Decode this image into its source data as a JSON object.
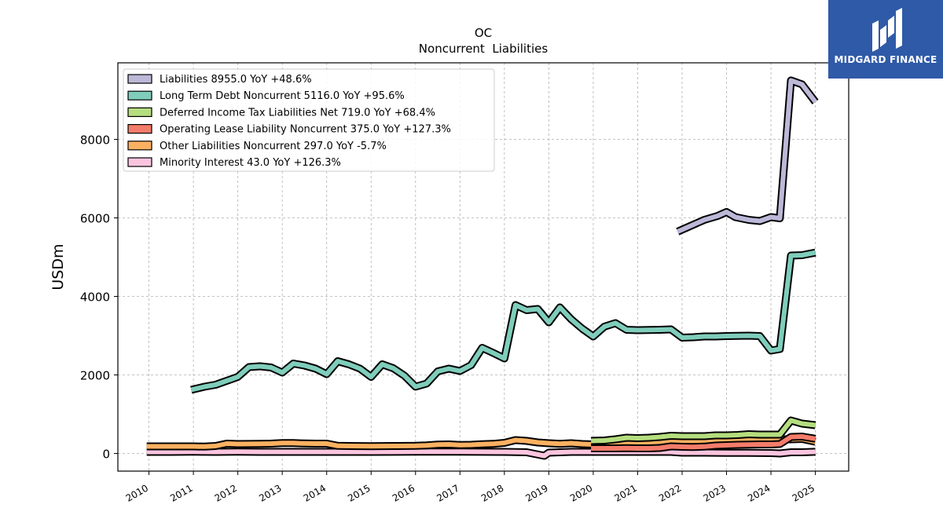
{
  "brand": {
    "name": "MIDGARD FINANCE",
    "bg": "#2f5aa8",
    "icon": "midgard-logo-icon"
  },
  "chart_data": {
    "type": "line",
    "title": "OC",
    "subtitle": "Noncurrent  Liabilities",
    "ylabel": "USDm",
    "xlabel": "",
    "ylim": [
      -450,
      9950
    ],
    "xlim": [
      2009.3,
      2025.75
    ],
    "yticks": [
      0,
      2000,
      4000,
      6000,
      8000
    ],
    "xticks": [
      "2010",
      "2011",
      "2012",
      "2013",
      "2014",
      "2015",
      "2016",
      "2017",
      "2018",
      "2019",
      "2020",
      "2021",
      "2022",
      "2023",
      "2024",
      "2025"
    ],
    "grid": true,
    "legend_position": "top-left",
    "series": [
      {
        "name": "Liabilities",
        "legend": "Liabilities  8955.0 YoY +48.6%",
        "color": "#bcb8d8",
        "points": [
          [
            2021.9,
            5650
          ],
          [
            2022.2,
            5800
          ],
          [
            2022.5,
            5950
          ],
          [
            2022.8,
            6050
          ],
          [
            2023.0,
            6150
          ],
          [
            2023.2,
            6020
          ],
          [
            2023.5,
            5950
          ],
          [
            2023.75,
            5920
          ],
          [
            2024.0,
            6020
          ],
          [
            2024.2,
            5990
          ],
          [
            2024.45,
            9500
          ],
          [
            2024.7,
            9400
          ],
          [
            2025.0,
            8955
          ]
        ]
      },
      {
        "name": "Long Term Debt Noncurrent",
        "legend": "Long Term Debt Noncurrent  5116.0 YoY +95.6%",
        "color": "#7fcdbb",
        "points": [
          [
            2010.95,
            1620
          ],
          [
            2011.25,
            1700
          ],
          [
            2011.5,
            1750
          ],
          [
            2011.75,
            1850
          ],
          [
            2012.0,
            1950
          ],
          [
            2012.25,
            2200
          ],
          [
            2012.5,
            2220
          ],
          [
            2012.75,
            2190
          ],
          [
            2013.0,
            2060
          ],
          [
            2013.25,
            2290
          ],
          [
            2013.5,
            2240
          ],
          [
            2013.75,
            2160
          ],
          [
            2014.0,
            2020
          ],
          [
            2014.25,
            2350
          ],
          [
            2014.5,
            2270
          ],
          [
            2014.75,
            2160
          ],
          [
            2015.0,
            1950
          ],
          [
            2015.25,
            2270
          ],
          [
            2015.5,
            2170
          ],
          [
            2015.75,
            1980
          ],
          [
            2016.0,
            1700
          ],
          [
            2016.25,
            1780
          ],
          [
            2016.5,
            2090
          ],
          [
            2016.75,
            2160
          ],
          [
            2017.0,
            2100
          ],
          [
            2017.25,
            2250
          ],
          [
            2017.5,
            2690
          ],
          [
            2017.75,
            2560
          ],
          [
            2018.0,
            2420
          ],
          [
            2018.25,
            3780
          ],
          [
            2018.5,
            3650
          ],
          [
            2018.75,
            3680
          ],
          [
            2019.0,
            3340
          ],
          [
            2019.25,
            3720
          ],
          [
            2019.5,
            3420
          ],
          [
            2019.75,
            3180
          ],
          [
            2020.0,
            2980
          ],
          [
            2020.25,
            3230
          ],
          [
            2020.5,
            3320
          ],
          [
            2020.75,
            3150
          ],
          [
            2021.0,
            3140
          ],
          [
            2021.5,
            3150
          ],
          [
            2021.75,
            3160
          ],
          [
            2022.0,
            2950
          ],
          [
            2022.25,
            2960
          ],
          [
            2022.5,
            2980
          ],
          [
            2022.75,
            2980
          ],
          [
            2023.0,
            2990
          ],
          [
            2023.5,
            3000
          ],
          [
            2023.75,
            2990
          ],
          [
            2024.0,
            2620
          ],
          [
            2024.2,
            2660
          ],
          [
            2024.45,
            5040
          ],
          [
            2024.7,
            5050
          ],
          [
            2025.0,
            5116
          ]
        ]
      },
      {
        "name": "Deferred Income Tax Liabilities Net",
        "legend": "Deferred Income Tax Liabilities Net  719.0 YoY +68.4%",
        "color": "#b5de7f",
        "points": [
          [
            2019.95,
            320
          ],
          [
            2020.25,
            330
          ],
          [
            2020.5,
            360
          ],
          [
            2020.75,
            400
          ],
          [
            2021.0,
            390
          ],
          [
            2021.25,
            400
          ],
          [
            2021.5,
            420
          ],
          [
            2021.75,
            450
          ],
          [
            2022.0,
            440
          ],
          [
            2022.25,
            440
          ],
          [
            2022.5,
            440
          ],
          [
            2022.75,
            460
          ],
          [
            2023.0,
            460
          ],
          [
            2023.25,
            470
          ],
          [
            2023.5,
            490
          ],
          [
            2023.75,
            480
          ],
          [
            2024.0,
            480
          ],
          [
            2024.2,
            480
          ],
          [
            2024.45,
            840
          ],
          [
            2024.7,
            760
          ],
          [
            2025.0,
            719
          ]
        ]
      },
      {
        "name": "Operating Lease Liability Noncurrent",
        "legend": "Operating Lease Liability Noncurrent  375.0 YoY +127.3%",
        "color": "#f47c6a",
        "points": [
          [
            2019.95,
            130
          ],
          [
            2020.25,
            130
          ],
          [
            2020.5,
            130
          ],
          [
            2020.75,
            135
          ],
          [
            2021.0,
            130
          ],
          [
            2021.25,
            130
          ],
          [
            2021.5,
            140
          ],
          [
            2021.75,
            180
          ],
          [
            2022.0,
            170
          ],
          [
            2022.25,
            165
          ],
          [
            2022.5,
            175
          ],
          [
            2022.75,
            200
          ],
          [
            2023.0,
            210
          ],
          [
            2023.25,
            220
          ],
          [
            2023.5,
            225
          ],
          [
            2023.75,
            230
          ],
          [
            2024.0,
            230
          ],
          [
            2024.2,
            240
          ],
          [
            2024.45,
            420
          ],
          [
            2024.7,
            430
          ],
          [
            2025.0,
            375
          ]
        ]
      },
      {
        "name": "Other Liabilities Noncurrent",
        "legend": "Other Liabilities Noncurrent  297.0 YoY -5.7%",
        "color": "#fbb161",
        "points": [
          [
            2009.95,
            180
          ],
          [
            2010.5,
            180
          ],
          [
            2011.0,
            180
          ],
          [
            2011.25,
            175
          ],
          [
            2011.5,
            190
          ],
          [
            2011.75,
            250
          ],
          [
            2012.0,
            240
          ],
          [
            2012.5,
            245
          ],
          [
            2012.75,
            250
          ],
          [
            2013.0,
            265
          ],
          [
            2013.25,
            265
          ],
          [
            2013.5,
            255
          ],
          [
            2013.75,
            250
          ],
          [
            2014.0,
            250
          ],
          [
            2014.25,
            195
          ],
          [
            2014.5,
            190
          ],
          [
            2015.0,
            185
          ],
          [
            2015.5,
            190
          ],
          [
            2016.0,
            195
          ],
          [
            2016.25,
            205
          ],
          [
            2016.5,
            225
          ],
          [
            2016.75,
            230
          ],
          [
            2017.0,
            215
          ],
          [
            2017.25,
            220
          ],
          [
            2017.5,
            235
          ],
          [
            2017.75,
            245
          ],
          [
            2018.0,
            270
          ],
          [
            2018.25,
            340
          ],
          [
            2018.5,
            320
          ],
          [
            2018.75,
            280
          ],
          [
            2019.0,
            260
          ],
          [
            2019.25,
            245
          ],
          [
            2019.5,
            260
          ],
          [
            2019.75,
            240
          ],
          [
            2020.0,
            230
          ],
          [
            2020.25,
            240
          ],
          [
            2020.5,
            250
          ],
          [
            2020.75,
            255
          ],
          [
            2021.0,
            260
          ],
          [
            2021.25,
            270
          ],
          [
            2021.5,
            300
          ],
          [
            2021.75,
            330
          ],
          [
            2022.0,
            320
          ],
          [
            2022.25,
            290
          ],
          [
            2022.5,
            300
          ],
          [
            2022.75,
            320
          ],
          [
            2023.0,
            330
          ],
          [
            2023.25,
            340
          ],
          [
            2023.5,
            350
          ],
          [
            2023.75,
            360
          ],
          [
            2024.0,
            350
          ],
          [
            2024.2,
            360
          ],
          [
            2024.45,
            360
          ],
          [
            2024.7,
            370
          ],
          [
            2025.0,
            297
          ]
        ]
      },
      {
        "name": "Minority Interest",
        "legend": "Minority Interest  43.0 YoY +126.3%",
        "color": "#fcc5df",
        "points": [
          [
            2009.95,
            40
          ],
          [
            2010.5,
            40
          ],
          [
            2011.0,
            45
          ],
          [
            2011.5,
            40
          ],
          [
            2012.0,
            45
          ],
          [
            2012.5,
            40
          ],
          [
            2013.0,
            40
          ],
          [
            2014.0,
            40
          ],
          [
            2015.0,
            40
          ],
          [
            2016.0,
            45
          ],
          [
            2017.0,
            45
          ],
          [
            2018.0,
            40
          ],
          [
            2018.5,
            30
          ],
          [
            2018.9,
            -60
          ],
          [
            2019.0,
            20
          ],
          [
            2019.5,
            40
          ],
          [
            2020.0,
            40
          ],
          [
            2021.0,
            40
          ],
          [
            2021.75,
            40
          ],
          [
            2022.0,
            20
          ],
          [
            2022.5,
            20
          ],
          [
            2023.0,
            15
          ],
          [
            2023.5,
            15
          ],
          [
            2024.0,
            10
          ],
          [
            2024.2,
            0
          ],
          [
            2024.45,
            30
          ],
          [
            2024.7,
            30
          ],
          [
            2025.0,
            43
          ]
        ]
      }
    ]
  }
}
